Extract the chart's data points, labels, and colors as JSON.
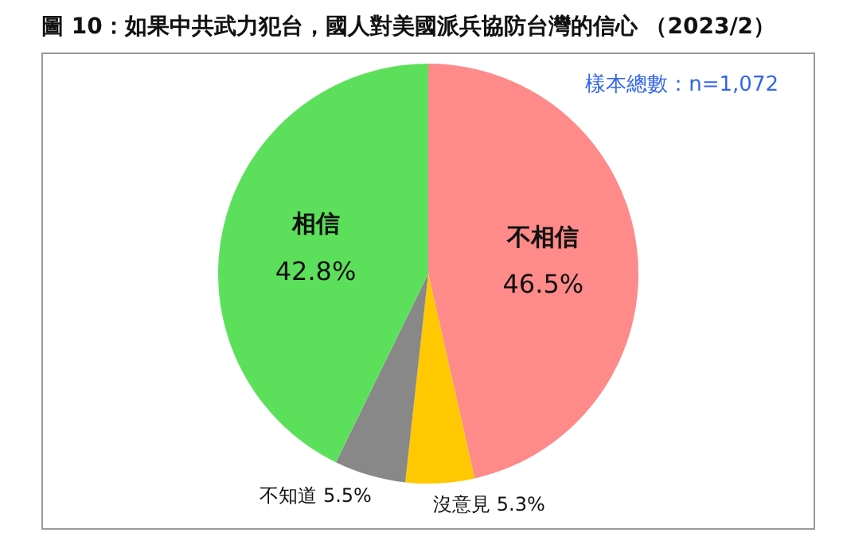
{
  "chart_data": {
    "type": "pie",
    "title": "圖 10：如果中共武力犯台，國人對美國派兵協防台灣的信心 （2023/2）",
    "categories": [
      "不相信",
      "沒意見",
      "不知道",
      "相信"
    ],
    "values": [
      46.5,
      5.3,
      5.5,
      42.8
    ],
    "colors": [
      "#ff8a8a",
      "#ffc800",
      "#888888",
      "#5ce05c"
    ],
    "value_labels": [
      "46.5%",
      "5.3%",
      "5.5%",
      "42.8%"
    ],
    "annotations": [
      "樣本總數：n=1,072"
    ],
    "legend": false
  }
}
